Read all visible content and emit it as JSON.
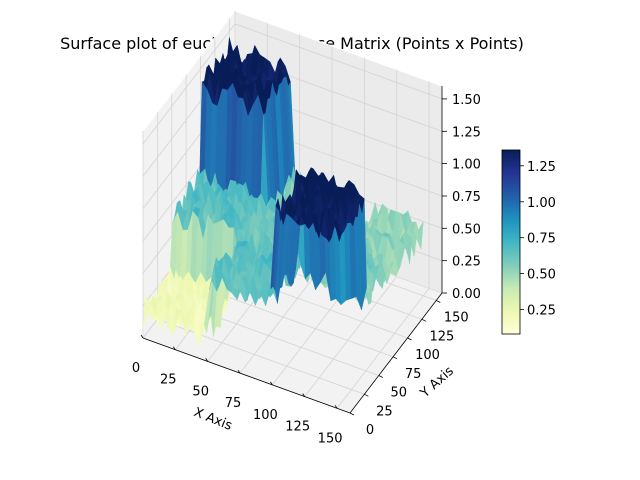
{
  "chart_data": {
    "type": "surface3d",
    "title": "Surface plot of euclidean Distance Matrix (Points x Points)",
    "xlabel": "X Axis",
    "ylabel": "Y Axis",
    "zlabel": "",
    "xlim": [
      0,
      160
    ],
    "ylim": [
      0,
      160
    ],
    "zlim": [
      0,
      1.6
    ],
    "x_ticks": [
      "0",
      "25",
      "50",
      "75",
      "100",
      "125",
      "150"
    ],
    "y_ticks": [
      "0",
      "25",
      "50",
      "75",
      "100",
      "125",
      "150"
    ],
    "z_ticks": [
      "0.00",
      "0.25",
      "0.50",
      "0.75",
      "1.00",
      "1.25",
      "1.50"
    ],
    "colormap": "YlGnBu",
    "colorbar": {
      "min": 0.08,
      "max": 1.36,
      "ticks": [
        "0.25",
        "0.50",
        "0.75",
        "1.00",
        "1.25"
      ]
    },
    "grid": true,
    "clusters": [
      {
        "range": [
          0,
          50
        ],
        "self_distance": 0.2
      },
      {
        "range": [
          50,
          100
        ],
        "self_distance": 0.6
      },
      {
        "range": [
          100,
          150
        ],
        "self_distance": 0.5
      }
    ],
    "cross_distances": [
      {
        "pair": [
          "cluster1",
          "cluster2"
        ],
        "distance": 0.65
      },
      {
        "pair": [
          "cluster1",
          "cluster3"
        ],
        "distance": 1.35
      },
      {
        "pair": [
          "cluster2",
          "cluster3"
        ],
        "distance": 0.55
      }
    ],
    "noise": 0.12
  }
}
